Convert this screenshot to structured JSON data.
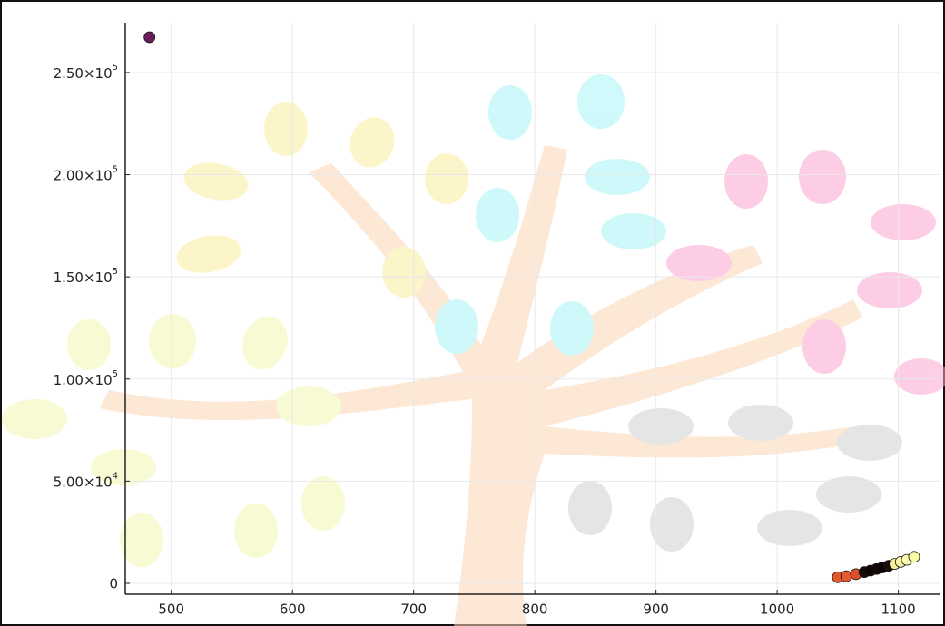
{
  "chart_data": {
    "type": "scatter",
    "x": [
      482,
      1050,
      1057,
      1065,
      1072,
      1077,
      1082,
      1087,
      1092,
      1097,
      1102,
      1107,
      1113
    ],
    "values": [
      267300,
      3000,
      3500,
      4500,
      5500,
      6200,
      7000,
      7800,
      8600,
      9500,
      10500,
      11500,
      13000
    ],
    "colors": [
      "#6b1d5c",
      "#e3592c",
      "#e55c30",
      "#d9502a",
      "#1a0b0b",
      "#0d0505",
      "#120808",
      "#0a0404",
      "#1a0c0c",
      "#f3ee98",
      "#f8f4a6",
      "#fbf9ad",
      "#fcfea4"
    ],
    "xlim": [
      462,
      1134
    ],
    "ylim": [
      -5330,
      274400
    ],
    "xticks": [
      500,
      600,
      700,
      800,
      900,
      1000,
      1100
    ],
    "yticks": [
      0,
      {
        "value": 50000,
        "label": "5.00×10",
        "exponent": "4"
      },
      {
        "value": 100000,
        "label": "1.00×10",
        "exponent": "5"
      },
      {
        "value": 150000,
        "label": "1.50×10",
        "exponent": "5"
      },
      {
        "value": 200000,
        "label": "2.00×10",
        "exponent": "5"
      },
      {
        "value": 250000,
        "label": "2.50×10",
        "exponent": "5"
      }
    ],
    "grid": true
  }
}
